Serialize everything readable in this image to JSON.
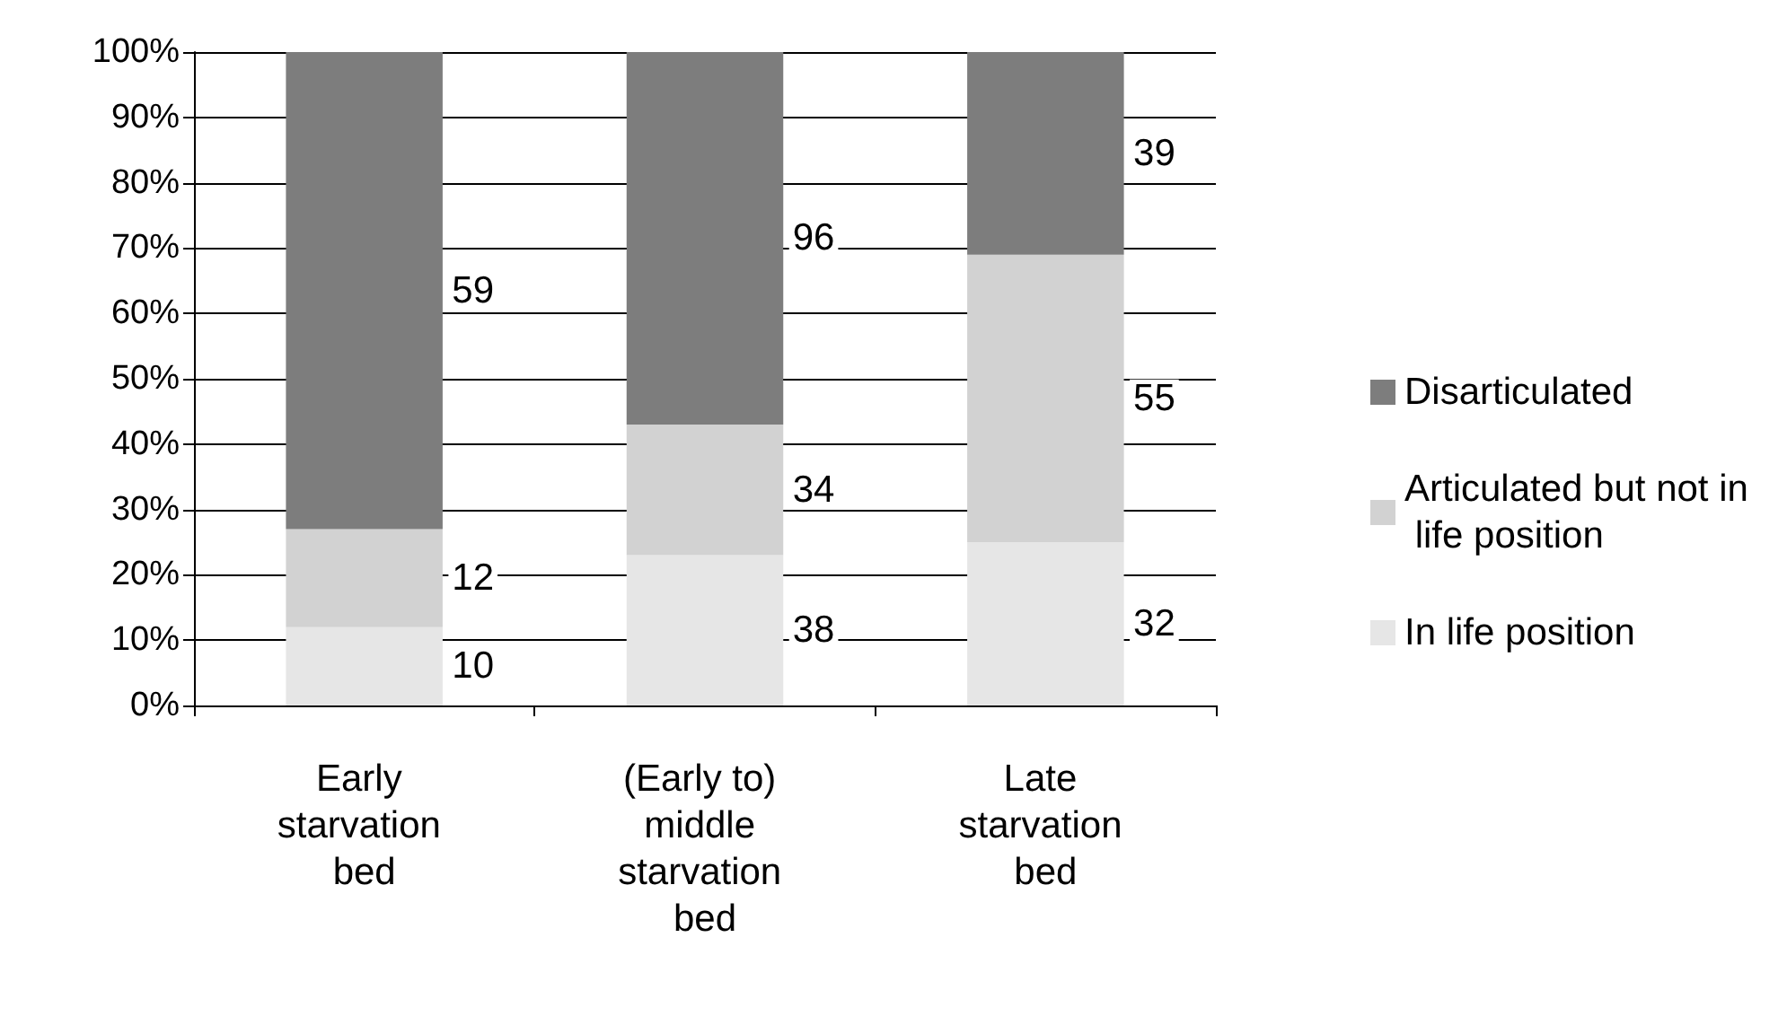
{
  "chart_data": {
    "type": "bar",
    "stacked": true,
    "categories": [
      "Early starvation bed",
      "(Early to) middle starvation bed",
      "Late starvation bed"
    ],
    "series": [
      {
        "name": "In life position",
        "color": "#e6e6e6",
        "values": [
          12,
          23,
          25
        ]
      },
      {
        "name": "Articulated but not in life position",
        "color": "#d2d2d2",
        "values": [
          15,
          20,
          44
        ]
      },
      {
        "name": "Disarticulated",
        "color": "#7d7d7d",
        "values": [
          73,
          57,
          31
        ]
      }
    ],
    "annotations": [
      "10",
      "12",
      "59",
      "38",
      "34",
      "96",
      "32",
      "55",
      "39"
    ],
    "ylim": [
      0,
      100
    ],
    "yticks": [
      {
        "value": 0,
        "label": "0%"
      },
      {
        "value": 10,
        "label": "10%"
      },
      {
        "value": 20,
        "label": "20%"
      },
      {
        "value": 30,
        "label": "30%"
      },
      {
        "value": 40,
        "label": "40%"
      },
      {
        "value": 50,
        "label": "50%"
      },
      {
        "value": 60,
        "label": "60%"
      },
      {
        "value": 70,
        "label": "70%"
      },
      {
        "value": 80,
        "label": "80%"
      },
      {
        "value": 90,
        "label": "90%"
      },
      {
        "value": 100,
        "label": "100%"
      }
    ],
    "grid": "y",
    "legend": "right"
  }
}
